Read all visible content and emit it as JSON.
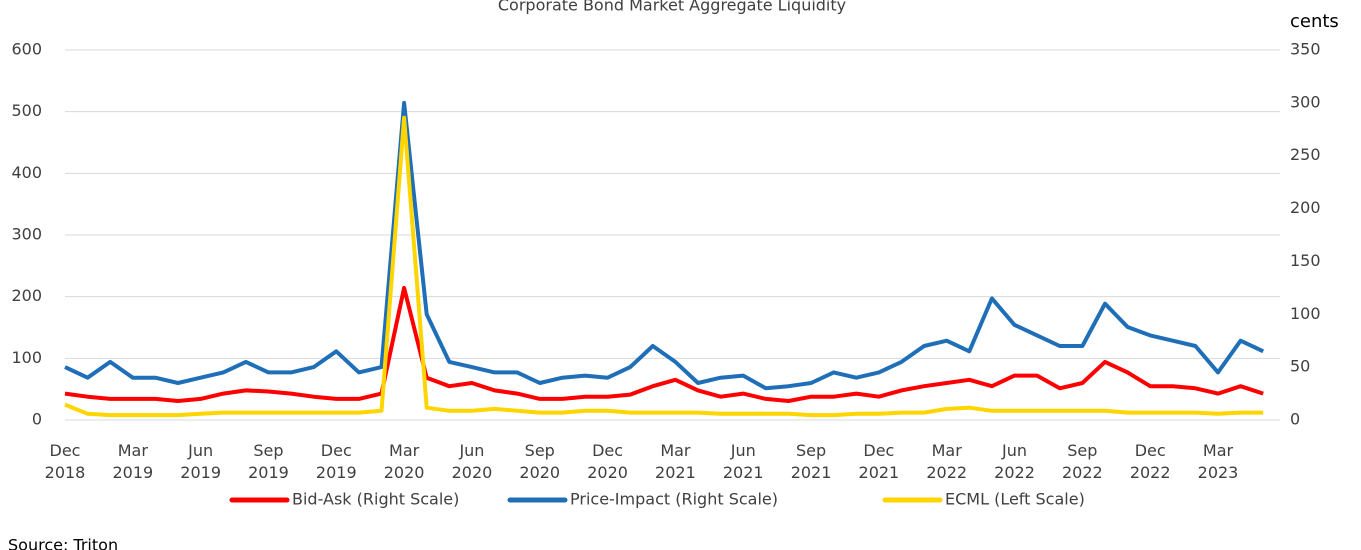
{
  "chart_data": {
    "type": "line",
    "title": "Corporate Bond Market Aggregate Liquidity",
    "y2_unit": "cents",
    "source": "Source: Triton",
    "categories": [
      "Dec 2018",
      null,
      null,
      "Mar 2019",
      null,
      null,
      "Jun 2019",
      null,
      null,
      "Sep 2019",
      null,
      null,
      "Dec 2019",
      null,
      null,
      "Mar 2020",
      null,
      null,
      "Jun 2020",
      null,
      null,
      "Sep 2020",
      null,
      null,
      "Dec 2020",
      null,
      null,
      "Mar 2021",
      null,
      null,
      "Jun 2021",
      null,
      null,
      "Sep 2021",
      null,
      null,
      "Dec 2021",
      null,
      null,
      "Mar 2022",
      null,
      null,
      "Jun 2022",
      null,
      null,
      "Sep 2022",
      null,
      null,
      "Dec 2022",
      null,
      null,
      "Mar 2023",
      null,
      null
    ],
    "ylim": [
      0,
      600
    ],
    "yticks": [
      0,
      100,
      200,
      300,
      400,
      500,
      600
    ],
    "y2lim": [
      0,
      350
    ],
    "y2ticks": [
      0,
      50,
      100,
      150,
      200,
      250,
      300,
      350
    ],
    "grid": true,
    "legend": "bottom",
    "series": [
      {
        "name": "Bid-Ask (Right Scale)",
        "color": "#ff0000",
        "axis": "y2",
        "values": [
          25,
          22,
          20,
          20,
          20,
          18,
          20,
          25,
          28,
          27,
          25,
          22,
          20,
          20,
          25,
          125,
          40,
          32,
          35,
          28,
          25,
          20,
          20,
          22,
          22,
          24,
          32,
          38,
          28,
          22,
          25,
          20,
          18,
          22,
          22,
          25,
          22,
          28,
          32,
          35,
          38,
          32,
          42,
          42,
          30,
          35,
          55,
          45,
          32,
          32,
          30,
          25,
          32,
          25
        ]
      },
      {
        "name": "Price-Impact (Right Scale)",
        "color": "#1f6fb8",
        "axis": "y2",
        "values": [
          50,
          40,
          55,
          40,
          40,
          35,
          40,
          45,
          55,
          45,
          45,
          50,
          65,
          45,
          50,
          300,
          100,
          55,
          50,
          45,
          45,
          35,
          40,
          42,
          40,
          50,
          70,
          55,
          35,
          40,
          42,
          30,
          32,
          35,
          45,
          40,
          45,
          55,
          70,
          75,
          65,
          115,
          90,
          80,
          70,
          70,
          110,
          88,
          80,
          75,
          70,
          45,
          75,
          65
        ]
      },
      {
        "name": "ECML (Left Scale)",
        "color": "#ffd500",
        "values": [
          25,
          10,
          8,
          8,
          8,
          8,
          10,
          12,
          12,
          12,
          12,
          12,
          12,
          12,
          15,
          490,
          20,
          15,
          15,
          18,
          15,
          12,
          12,
          15,
          15,
          12,
          12,
          12,
          12,
          10,
          10,
          10,
          10,
          8,
          8,
          10,
          10,
          12,
          12,
          18,
          20,
          15,
          15,
          15,
          15,
          15,
          15,
          12,
          12,
          12,
          12,
          10,
          12,
          12
        ]
      }
    ]
  }
}
